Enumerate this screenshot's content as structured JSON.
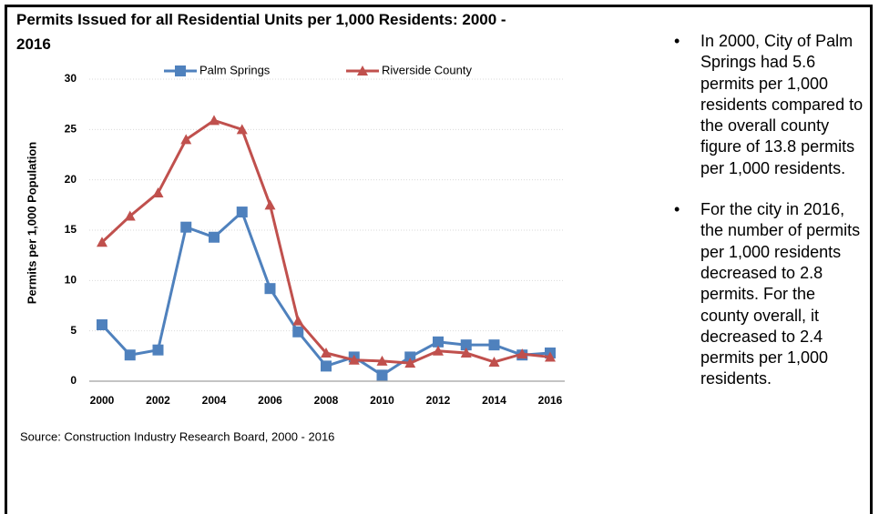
{
  "chart_data": {
    "type": "line",
    "title": "Permits Issued for all Residential Units per 1,000 Residents: 2000 - 2016",
    "y_label": "Permits per 1,000 Population",
    "source": "Source: Construction Industry Research Board, 2000 - 2016",
    "x": [
      2000,
      2001,
      2002,
      2003,
      2004,
      2005,
      2006,
      2007,
      2008,
      2009,
      2010,
      2011,
      2012,
      2013,
      2014,
      2015,
      2016
    ],
    "series": [
      {
        "name": "Palm Springs",
        "color": "#4f81bd",
        "marker": "square",
        "values": [
          5.6,
          2.6,
          3.1,
          15.3,
          14.3,
          16.8,
          9.2,
          4.9,
          1.5,
          2.4,
          0.6,
          2.4,
          3.9,
          3.6,
          3.6,
          2.6,
          2.8
        ]
      },
      {
        "name": "Riverside County",
        "color": "#c0504d",
        "marker": "triangle",
        "values": [
          13.8,
          16.4,
          18.7,
          24.0,
          25.9,
          25.0,
          17.5,
          6.0,
          2.8,
          2.1,
          2.0,
          1.8,
          3.0,
          2.8,
          1.9,
          2.7,
          2.4
        ]
      }
    ],
    "xlim": [
      2000,
      2016
    ],
    "xticks": [
      2000,
      2002,
      2004,
      2006,
      2008,
      2010,
      2012,
      2014,
      2016
    ],
    "ylim": [
      0,
      30
    ],
    "yticks": [
      0,
      5,
      10,
      15,
      20,
      25,
      30
    ],
    "grid": true,
    "legend": "top"
  },
  "bullets": [
    "In 2000, City of Palm Springs had 5.6 permits per 1,000 residents compared to the overall county figure of 13.8 permits per 1,000 residents.",
    "For the city in 2016, the number of permits per 1,000 residents decreased to 2.8 permits. For the county overall, it decreased to 2.4 permits per 1,000 residents."
  ]
}
